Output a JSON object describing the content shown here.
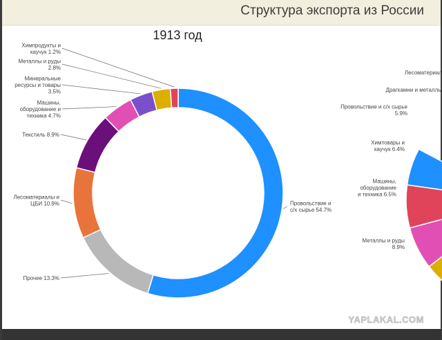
{
  "banner_title": "Структура экспорта из России",
  "watermark": "YAPLAKAL.COM",
  "chart_data": [
    {
      "type": "pie",
      "title": "1913 год",
      "slices": [
        {
          "label": [
            "Провольствие и",
            "с/х сырье 54.7%"
          ],
          "value": 54.7,
          "color": "#1e90ff"
        },
        {
          "label": [
            "Прочее 13.3%"
          ],
          "value": 13.3,
          "color": "#b8b8b8"
        },
        {
          "label": [
            "Лесоматериалы и",
            "ЦБИ 10.9%"
          ],
          "value": 10.9,
          "color": "#e8743b"
        },
        {
          "label": [
            "Текстиль 8.9%"
          ],
          "value": 8.9,
          "color": "#6b0f7a"
        },
        {
          "label": [
            "Машины,",
            "оборудование и",
            "техника 4.7%"
          ],
          "value": 4.7,
          "color": "#e24fb4"
        },
        {
          "label": [
            "Минеральные",
            "ресурсы и товары",
            "3.5%"
          ],
          "value": 3.5,
          "color": "#7b4fc9"
        },
        {
          "label": [
            "Металлы и руды",
            "2.8%"
          ],
          "value": 2.8,
          "color": "#dcae00"
        },
        {
          "label": [
            "Химпродукты и",
            "каучук 1.2%"
          ],
          "value": 1.2,
          "color": "#e0445a"
        }
      ]
    },
    {
      "type": "pie",
      "title": "",
      "partial": true,
      "slices": [
        {
          "label": [
            "Лесоматериал"
          ],
          "color": "#e8743b"
        },
        {
          "label": [
            "Драгкамни и металлы"
          ],
          "color": "#7b4fc9"
        },
        {
          "label": [
            "Провольствие и с/х сырье",
            "5.9%"
          ],
          "value": 5.9,
          "color": "#1e90ff"
        },
        {
          "label": [
            "Химтовары и",
            "каучук 6.4%"
          ],
          "value": 6.4,
          "color": "#e0445a"
        },
        {
          "label": [
            "Машины,",
            "оборудование",
            "и техника 6.5%"
          ],
          "value": 6.5,
          "color": "#e24fb4"
        },
        {
          "label": [
            "Металлы и руды",
            "8.9%"
          ],
          "value": 8.9,
          "color": "#dcae00"
        }
      ]
    }
  ]
}
